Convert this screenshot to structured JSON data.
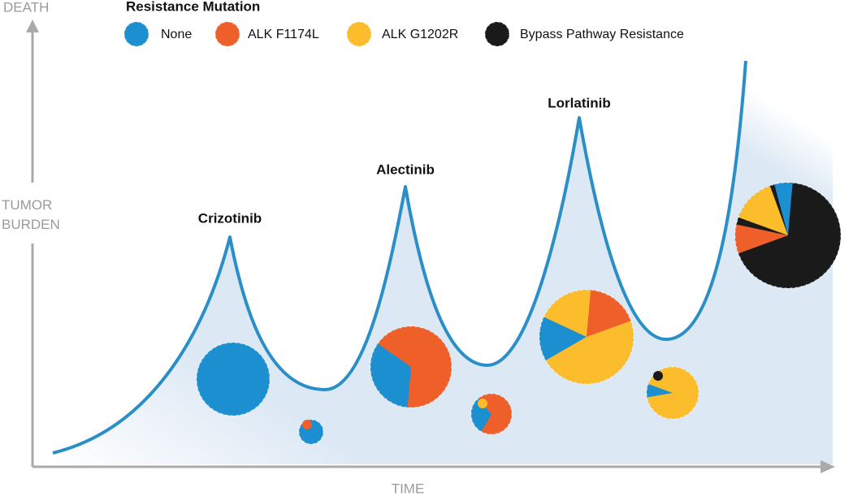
{
  "axes": {
    "y_top": "DEATH",
    "y_middle": "TUMOR BURDEN",
    "x": "TIME"
  },
  "legend": {
    "title": "Resistance Mutation",
    "items": [
      {
        "name": "None",
        "color": "#1b8fd0"
      },
      {
        "name": "ALK F1174L",
        "color": "#ee5f2a"
      },
      {
        "name": "ALK G1202R",
        "color": "#fbbd2c"
      },
      {
        "name": "Bypass Pathway Resistance",
        "color": "#1a1a1a"
      }
    ]
  },
  "treatments": [
    "Crizotinib",
    "Alectinib",
    "Lorlatinib"
  ]
}
